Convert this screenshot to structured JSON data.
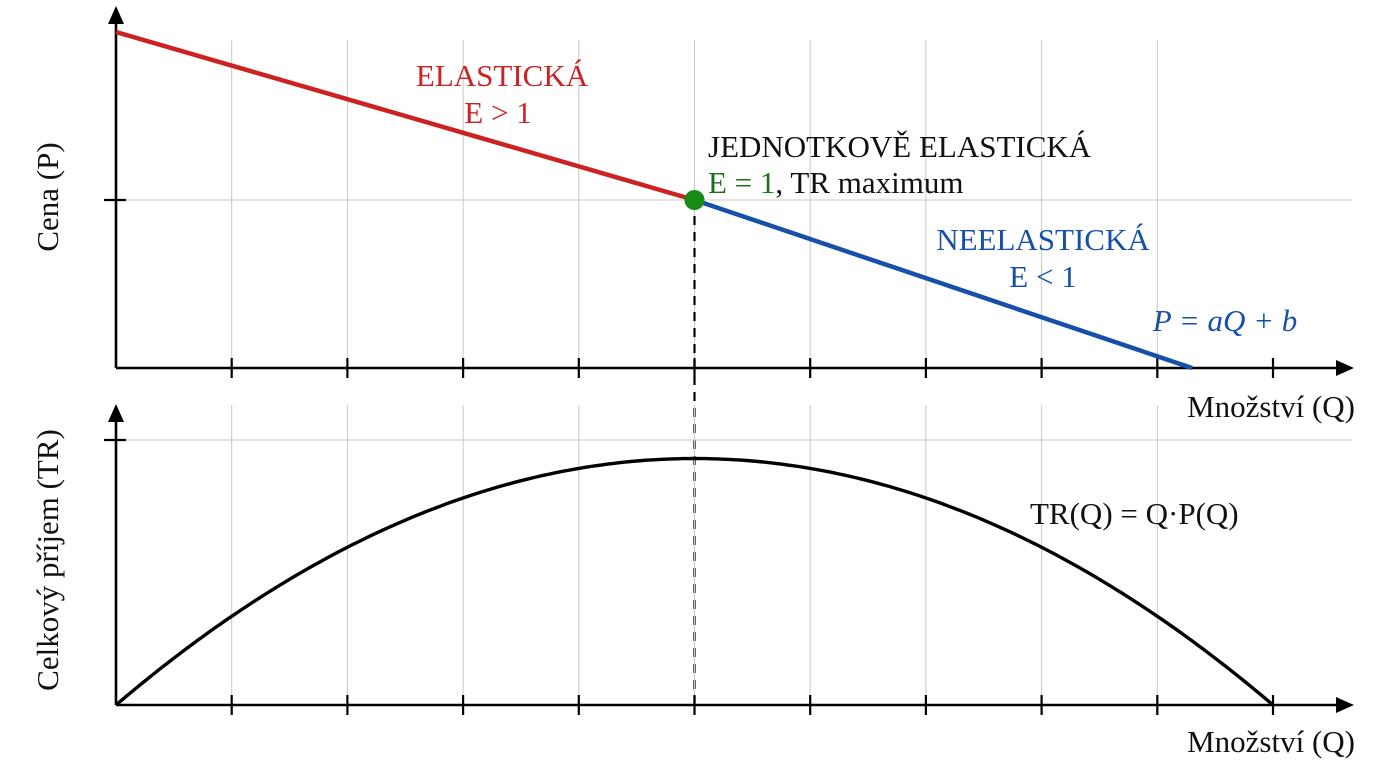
{
  "colors": {
    "elastic": "#cc2222",
    "inelastic": "#1650a8",
    "unit": "#1e6e1e",
    "point": "#178a17",
    "curve": "#000000",
    "grid": "#c8c8c8"
  },
  "chart_data": [
    {
      "type": "line",
      "ylabel": "Cena (P)",
      "xlabel": "Množství (Q)",
      "xlim": [
        0,
        10
      ],
      "ylim": [
        0,
        10
      ],
      "grid": true,
      "series": [
        {
          "name": "ELASTICKÁ",
          "x": [
            0,
            5
          ],
          "y": [
            9.3,
            4.65
          ]
        },
        {
          "name": "NEELASTICKÁ",
          "x": [
            5,
            9.3
          ],
          "y": [
            4.65,
            0
          ]
        }
      ],
      "annotations": {
        "elastic_title": "ELASTICKÁ",
        "elastic_cond": "E > 1",
        "unit_title": "JEDNOTKOVĚ ELASTICKÁ",
        "unit_cond": "E = 1",
        "unit_suffix": ", TR maximum",
        "inelastic_title": "NEELASTICKÁ",
        "inelastic_cond": "E < 1",
        "equation": "P = aQ + b"
      },
      "point": {
        "x": 5,
        "y": 4.65
      }
    },
    {
      "type": "line",
      "ylabel": "Celkový příjem (TR)",
      "xlabel": "Množství (Q)",
      "xlim": [
        0,
        10
      ],
      "ylim": [
        0,
        10
      ],
      "grid": true,
      "series": [
        {
          "name": "TR(Q) = Q·P(Q)",
          "formula": "TR = Q·(9.3 − 0.93·Q)",
          "peak": {
            "x": 5,
            "y": 23.25
          }
        }
      ],
      "annotations": {
        "equation": "TR(Q) = Q·P(Q)"
      }
    }
  ]
}
